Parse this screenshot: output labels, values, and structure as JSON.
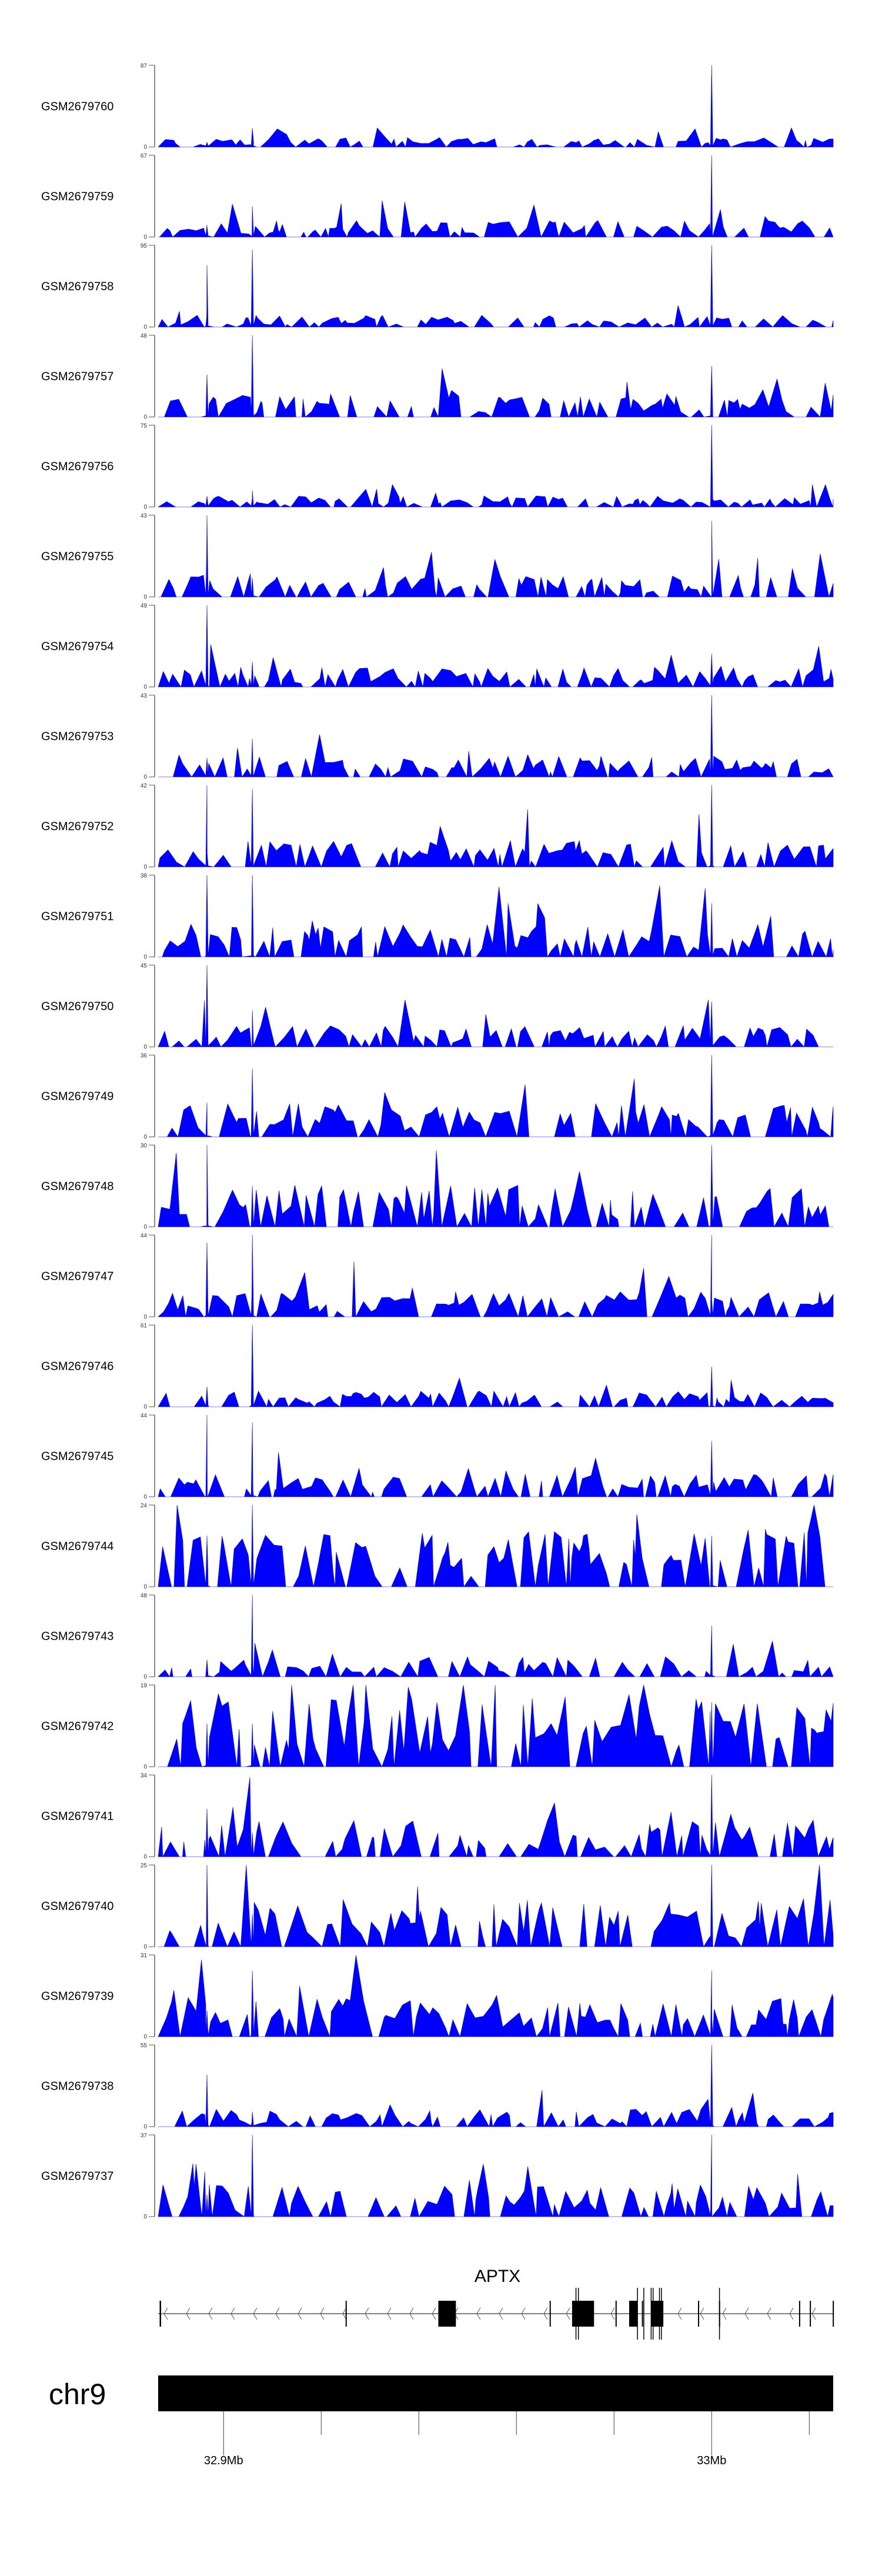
{
  "chart_data": {
    "type": "area",
    "title": "",
    "xlabel": "",
    "xlim_mb": [
      32.8866,
      33.0249
    ],
    "signal_color": "#0000FF",
    "samples": [
      {
        "name": "GSM2679760",
        "ymax": 87,
        "baseline": 6,
        "peaks": [
          5,
          20,
          87
        ]
      },
      {
        "name": "GSM2679759",
        "ymax": 67,
        "baseline": 8,
        "peaks": [
          10,
          25,
          67
        ]
      },
      {
        "name": "GSM2679758",
        "ymax": 95,
        "baseline": 8,
        "peaks": [
          72,
          90,
          95
        ]
      },
      {
        "name": "GSM2679757",
        "ymax": 48,
        "baseline": 8,
        "peaks": [
          25,
          48,
          30
        ]
      },
      {
        "name": "GSM2679756",
        "ymax": 75,
        "baseline": 6,
        "peaks": [
          10,
          15,
          75
        ]
      },
      {
        "name": "GSM2679755",
        "ymax": 43,
        "baseline": 7,
        "peaks": [
          43,
          10,
          40
        ]
      },
      {
        "name": "GSM2679754",
        "ymax": 49,
        "baseline": 7,
        "peaks": [
          49,
          15,
          20
        ]
      },
      {
        "name": "GSM2679753",
        "ymax": 43,
        "baseline": 7,
        "peaks": [
          10,
          20,
          43
        ]
      },
      {
        "name": "GSM2679752",
        "ymax": 42,
        "baseline": 8,
        "peaks": [
          42,
          40,
          42
        ]
      },
      {
        "name": "GSM2679751",
        "ymax": 38,
        "baseline": 9,
        "peaks": [
          38,
          38,
          25
        ]
      },
      {
        "name": "GSM2679750",
        "ymax": 45,
        "baseline": 7,
        "peaks": [
          45,
          20,
          25
        ]
      },
      {
        "name": "GSM2679749",
        "ymax": 36,
        "baseline": 9,
        "peaks": [
          15,
          30,
          36
        ]
      },
      {
        "name": "GSM2679748",
        "ymax": 30,
        "baseline": 9,
        "peaks": [
          30,
          15,
          30
        ]
      },
      {
        "name": "GSM2679747",
        "ymax": 44,
        "baseline": 8,
        "peaks": [
          40,
          44,
          44
        ]
      },
      {
        "name": "GSM2679746",
        "ymax": 61,
        "baseline": 7,
        "peaks": [
          15,
          61,
          30
        ]
      },
      {
        "name": "GSM2679745",
        "ymax": 44,
        "baseline": 8,
        "peaks": [
          44,
          40,
          30
        ]
      },
      {
        "name": "GSM2679744",
        "ymax": 24,
        "baseline": 10,
        "peaks": [
          15,
          24,
          15
        ]
      },
      {
        "name": "GSM2679743",
        "ymax": 48,
        "baseline": 7,
        "peaks": [
          10,
          48,
          30
        ]
      },
      {
        "name": "GSM2679742",
        "ymax": 19,
        "baseline": 10,
        "peaks": [
          10,
          10,
          15
        ]
      },
      {
        "name": "GSM2679741",
        "ymax": 34,
        "baseline": 9,
        "peaks": [
          20,
          10,
          34
        ]
      },
      {
        "name": "GSM2679740",
        "ymax": 25,
        "baseline": 9,
        "peaks": [
          25,
          10,
          25
        ]
      },
      {
        "name": "GSM2679739",
        "ymax": 31,
        "baseline": 9,
        "peaks": [
          10,
          25,
          25
        ]
      },
      {
        "name": "GSM2679738",
        "ymax": 55,
        "baseline": 7,
        "peaks": [
          35,
          10,
          55
        ]
      },
      {
        "name": "GSM2679737",
        "ymax": 37,
        "baseline": 9,
        "peaks": [
          10,
          37,
          37
        ]
      }
    ],
    "peak_positions_mb": [
      32.8966,
      32.9059,
      33.0
    ],
    "gene": {
      "name": "APTX",
      "strand": "-",
      "start_mb": 32.8866,
      "end_mb": 33.0249,
      "exons_mb": [
        [
          32.8869,
          32.8872
        ],
        [
          32.925,
          32.9252
        ],
        [
          32.944,
          32.9476
        ],
        [
          32.9668,
          32.967
        ],
        [
          32.9714,
          32.9759
        ],
        [
          32.9803,
          32.9805
        ],
        [
          32.9831,
          32.9848
        ],
        [
          32.9857,
          32.9859
        ],
        [
          32.9876,
          32.9901
        ],
        [
          32.9972,
          32.9974
        ],
        [
          33.0015,
          33.0017
        ],
        [
          33.0179,
          33.0181
        ],
        [
          33.0201,
          33.0203
        ],
        [
          33.0248,
          33.0249
        ]
      ],
      "alt_marks_mb": [
        32.9722,
        32.9727,
        32.9848,
        32.9861,
        32.9876,
        32.988,
        32.9893,
        32.9897,
        33.0016
      ]
    },
    "ideogram": {
      "chromosome": "chr9",
      "ticks_mb": [
        32.9,
        32.92,
        32.94,
        32.96,
        32.98,
        33.0,
        33.02
      ],
      "tick_labels": [
        {
          "mb": 32.9,
          "label": "32.9Mb"
        },
        {
          "mb": 33.0,
          "label": "33Mb"
        }
      ]
    }
  }
}
